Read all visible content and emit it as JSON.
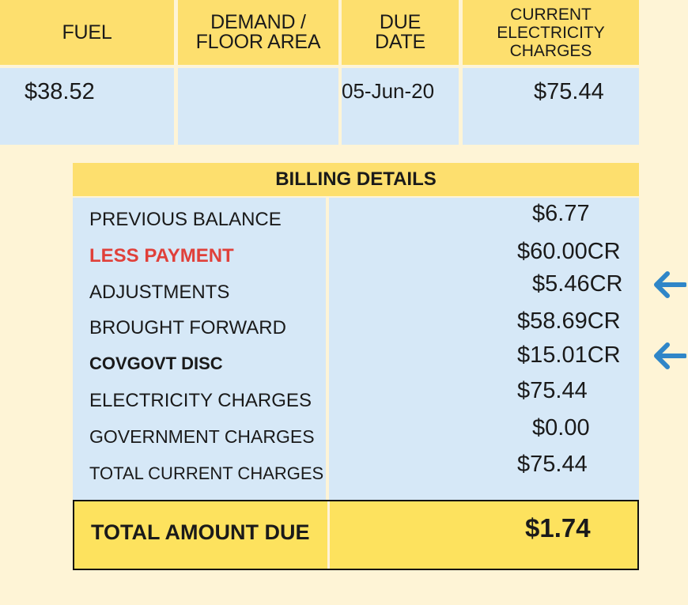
{
  "top_table": {
    "headers": {
      "fuel": "FUEL",
      "demand_line1": "DEMAND /",
      "demand_line2": "FLOOR AREA",
      "due_line1": "DUE",
      "due_line2": "DATE",
      "current_line1": "CURRENT",
      "current_line2": "ELECTRICITY",
      "current_line3": "CHARGES"
    },
    "values": {
      "fuel": "$38.52",
      "demand": "",
      "due_date": "05-Jun-20",
      "current_charges": "$75.44"
    }
  },
  "billing_details": {
    "title": "BILLING DETAILS",
    "rows": [
      {
        "label": "PREVIOUS BALANCE",
        "amount": "$6.77"
      },
      {
        "label": "LESS PAYMENT",
        "amount": "$60.00CR"
      },
      {
        "label": "ADJUSTMENTS",
        "amount": "$5.46CR"
      },
      {
        "label": "BROUGHT FORWARD",
        "amount": "$58.69CR"
      },
      {
        "label": "COVGOVT DISC",
        "amount": "$15.01CR"
      },
      {
        "label": "ELECTRICITY CHARGES",
        "amount": "$75.44"
      },
      {
        "label": "GOVERNMENT CHARGES",
        "amount": "$0.00"
      },
      {
        "label": "TOTAL CURRENT CHARGES",
        "amount": "$75.44"
      }
    ],
    "total_label": "TOTAL AMOUNT DUE",
    "total_amount": "$1.74"
  },
  "colors": {
    "highlight_red": "#e0403a",
    "arrow_blue": "#2f86c8",
    "header_yellow": "#fddf6e",
    "cell_blue": "#d6e8f7"
  },
  "icons": [
    "arrow-left-icon",
    "arrow-left-icon"
  ]
}
